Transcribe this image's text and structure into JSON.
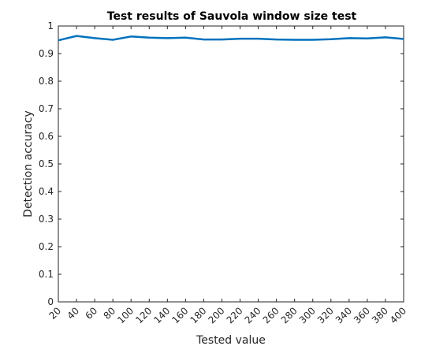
{
  "chart_data": {
    "type": "line",
    "title": "Test results of Sauvola window size test",
    "xlabel": "Tested value",
    "ylabel": "Detection accuracy",
    "xlim": [
      20,
      400
    ],
    "ylim": [
      0,
      1
    ],
    "x_ticks": [
      "20",
      "40",
      "60",
      "80",
      "100",
      "120",
      "140",
      "160",
      "180",
      "200",
      "220",
      "240",
      "260",
      "280",
      "300",
      "320",
      "340",
      "360",
      "380",
      "400"
    ],
    "y_ticks": [
      "0",
      "0.1",
      "0.2",
      "0.3",
      "0.4",
      "0.5",
      "0.6",
      "0.7",
      "0.8",
      "0.9",
      "1"
    ],
    "grid": false,
    "series": [
      {
        "color": "#0072BD",
        "x": [
          20,
          40,
          60,
          80,
          100,
          120,
          140,
          160,
          180,
          200,
          220,
          240,
          260,
          280,
          300,
          320,
          340,
          360,
          380,
          400
        ],
        "y": [
          0.948,
          0.964,
          0.956,
          0.95,
          0.962,
          0.958,
          0.956,
          0.958,
          0.951,
          0.951,
          0.954,
          0.954,
          0.951,
          0.95,
          0.95,
          0.952,
          0.956,
          0.955,
          0.959,
          0.953
        ]
      }
    ]
  }
}
